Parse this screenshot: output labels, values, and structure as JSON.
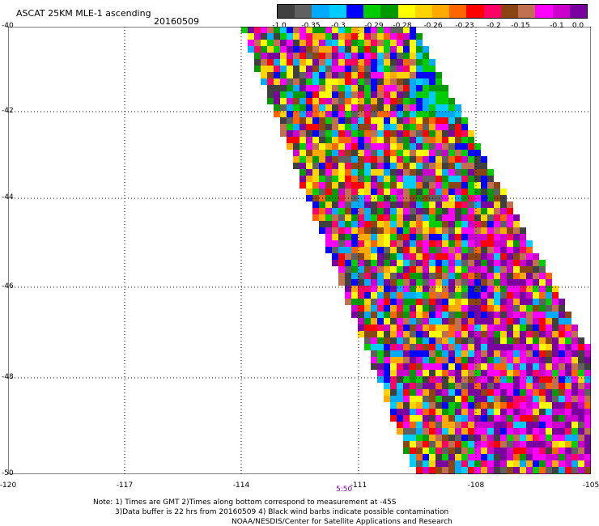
{
  "title": "ASCAT 25KM MLE-1 ascending",
  "date": "20160509",
  "colorbar": {
    "colors": [
      "#404040",
      "#606060",
      "#00aaff",
      "#00ccff",
      "#0000ff",
      "#00cc00",
      "#009900",
      "#ffff00",
      "#ffd400",
      "#ffaa00",
      "#ff6600",
      "#ff0000",
      "#ff0066",
      "#8b4513",
      "#c07050",
      "#ff00ff",
      "#cc00cc",
      "#7a00a0"
    ],
    "ticks": [
      "-1.0",
      "-0.35",
      "-0.3",
      "-0.29",
      "-0.28",
      "-0.26",
      "-0.23",
      "-0.2",
      "-0.15",
      "-0.1",
      "0.0"
    ]
  },
  "axes": {
    "y_ticks": [
      "-40",
      "-42",
      "-44",
      "-46",
      "-48",
      "-50"
    ],
    "x_ticks": [
      "-120",
      "-117",
      "-114",
      "-111",
      "-108",
      "-105"
    ]
  },
  "time_label": "5:50",
  "notes": [
    "Note: 1) Times are GMT 2)Times along bottom correspond to measurement at -45S",
    "3)Data buffer is 22 hrs from 20160509 4) Black wind barbs indicate possible contamination",
    "NOAA/NESDIS/Center for Satellite Applications and Research"
  ]
}
